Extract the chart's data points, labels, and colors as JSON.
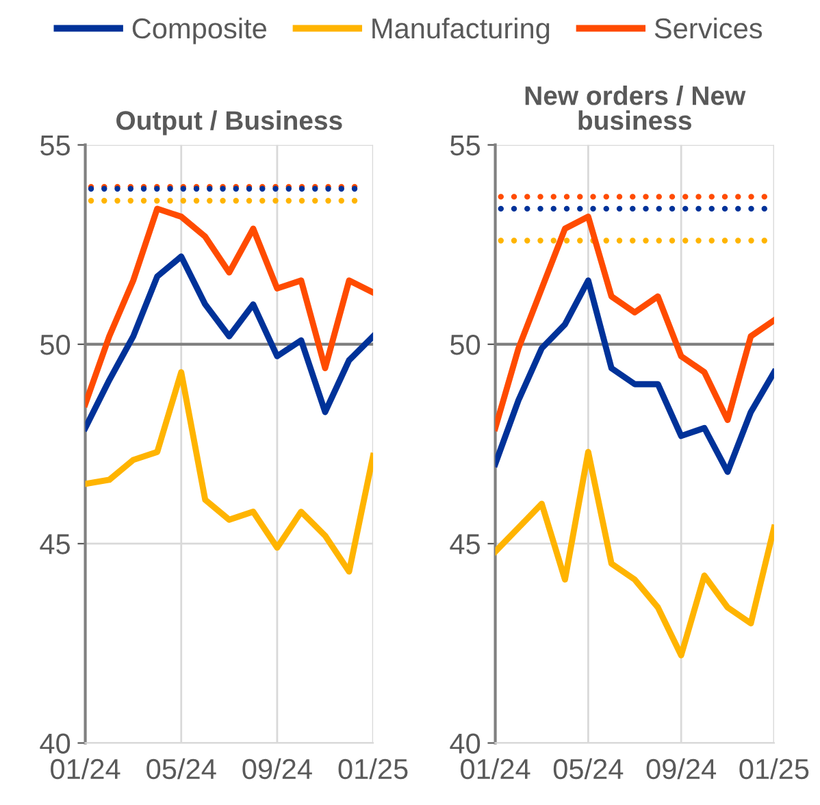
{
  "chart_data": [
    {
      "type": "line",
      "title": "Output / Business",
      "categories": [
        "01/24",
        null,
        null,
        null,
        "05/24",
        null,
        null,
        null,
        "09/24",
        null,
        null,
        null,
        "01/25"
      ],
      "series": [
        {
          "name": "Composite",
          "color": "#003299",
          "values": [
            47.9,
            49.1,
            50.2,
            51.7,
            52.2,
            51.0,
            50.2,
            51.0,
            49.7,
            50.1,
            48.3,
            49.6,
            50.2
          ]
        },
        {
          "name": "Manufacturing",
          "color": "#ffb400",
          "values": [
            46.5,
            46.6,
            47.1,
            47.3,
            49.3,
            46.1,
            45.6,
            45.8,
            44.9,
            45.8,
            45.2,
            44.3,
            47.2
          ]
        },
        {
          "name": "Services",
          "color": "#ff4b00",
          "values": [
            48.5,
            50.2,
            51.6,
            53.4,
            53.2,
            52.7,
            51.8,
            52.9,
            51.4,
            51.6,
            49.4,
            51.6,
            51.3
          ]
        }
      ],
      "ref_lines": [
        {
          "axis": "y",
          "value": 53.95,
          "color": "#ff4b00",
          "line_style": "dotted"
        },
        {
          "axis": "y",
          "value": 53.9,
          "color": "#003299",
          "line_style": "dotted"
        },
        {
          "axis": "y",
          "value": 53.6,
          "color": "#ffb400",
          "line_style": "dotted"
        },
        {
          "axis": "y",
          "value": 50,
          "color": "#808080",
          "line_style": "solid"
        }
      ],
      "ylim": [
        40,
        55
      ],
      "yticks": [
        40,
        45,
        50,
        55
      ],
      "grid": true,
      "legend": "top",
      "line_style": "solid",
      "marker": "none"
    },
    {
      "type": "line",
      "title": "New orders / New\nbusiness",
      "categories": [
        "01/24",
        null,
        null,
        null,
        "05/24",
        null,
        null,
        null,
        "09/24",
        null,
        null,
        null,
        "01/25"
      ],
      "series": [
        {
          "color": "#003299",
          "values": [
            47.0,
            48.6,
            49.9,
            50.5,
            51.6,
            49.4,
            49.0,
            49.0,
            47.7,
            47.9,
            46.8,
            48.3,
            49.3
          ]
        },
        {
          "color": "#ffb400",
          "values": [
            44.8,
            45.4,
            46.0,
            44.1,
            47.3,
            44.5,
            44.1,
            43.4,
            42.2,
            44.2,
            43.4,
            43.0,
            45.4
          ]
        },
        {
          "color": "#ff4b00",
          "values": [
            47.9,
            49.9,
            51.4,
            52.9,
            53.2,
            51.2,
            50.8,
            51.2,
            49.7,
            49.3,
            48.1,
            50.2,
            50.6
          ]
        }
      ],
      "ref_lines": [
        {
          "axis": "y",
          "value": 53.7,
          "color": "#ff4b00",
          "line_style": "dotted"
        },
        {
          "axis": "y",
          "value": 53.4,
          "color": "#003299",
          "line_style": "dotted"
        },
        {
          "axis": "y",
          "value": 52.6,
          "color": "#ffb400",
          "line_style": "dotted"
        },
        {
          "axis": "y",
          "value": 50,
          "color": "#808080",
          "line_style": "solid"
        }
      ],
      "ylim": [
        40,
        55
      ],
      "yticks": [
        40,
        45,
        50,
        55
      ],
      "grid": true,
      "line_style": "solid",
      "marker": "none"
    }
  ]
}
